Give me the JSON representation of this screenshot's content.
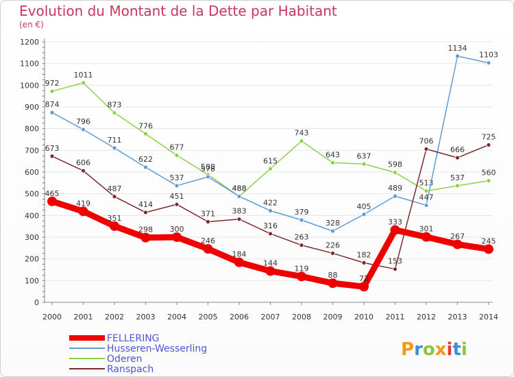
{
  "header": {
    "title": "Evolution du Montant de la Dette par Habitant",
    "subtitle": "(en €)"
  },
  "brand": {
    "text": "Proxiti",
    "letter_colors": [
      "#f59a16",
      "#3a8fd6",
      "#8cc63e",
      "#f59a16",
      "#e23b3b",
      "#3a8fd6",
      "#8cc63e"
    ]
  },
  "chart_data": {
    "type": "line",
    "title": "Evolution du Montant de la Dette par Habitant",
    "subtitle": "(en €)",
    "xlabel": "",
    "ylabel": "",
    "x": [
      "2000",
      "2001",
      "2002",
      "2003",
      "2004",
      "2005",
      "2006",
      "2007",
      "2008",
      "2009",
      "2010",
      "2011",
      "2012",
      "2013",
      "2014"
    ],
    "ylim": [
      0,
      1200
    ],
    "yticks": [
      0,
      100,
      200,
      300,
      400,
      500,
      600,
      700,
      800,
      900,
      1000,
      1100,
      1200
    ],
    "grid": "horizontal",
    "legend_position": "bottom-left",
    "series": [
      {
        "name": "Oderen",
        "color": "#8cd147",
        "values": [
          972,
          1011,
          873,
          776,
          677,
          588,
          488,
          615,
          743,
          643,
          637,
          598,
          513,
          537,
          560
        ]
      },
      {
        "name": "Husseren-Wesserling",
        "color": "#5e9bd3",
        "values": [
          874,
          796,
          711,
          622,
          537,
          578,
          488,
          422,
          379,
          328,
          405,
          489,
          447,
          1134,
          1103
        ]
      },
      {
        "name": "Ranspach",
        "color": "#7a2a2a",
        "values": [
          673,
          606,
          487,
          414,
          451,
          371,
          383,
          316,
          263,
          226,
          182,
          153,
          706,
          666,
          725
        ]
      },
      {
        "name": "FELLERING",
        "color": "#ee0000",
        "values": [
          465,
          419,
          351,
          298,
          300,
          246,
          184,
          144,
          119,
          88,
          72,
          333,
          301,
          267,
          245
        ]
      }
    ],
    "legend_order": [
      "FELLERING",
      "Husseren-Wesserling",
      "Oderen",
      "Ranspach"
    ]
  }
}
